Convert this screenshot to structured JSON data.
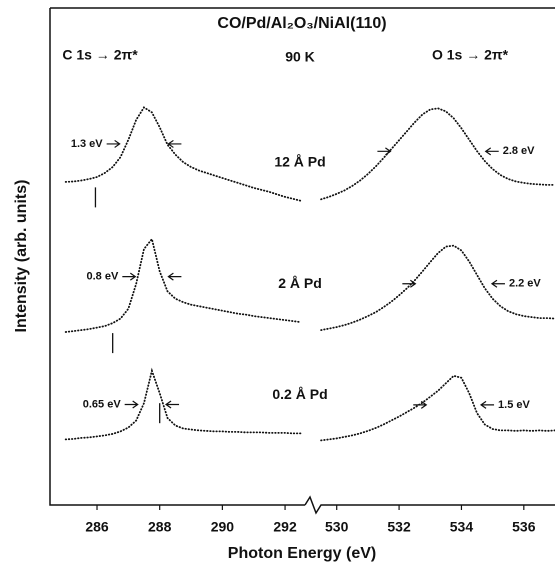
{
  "chart_data": {
    "type": "line",
    "title": "CO/Pd/Al₂O₃/NiAl(110)",
    "annotation": "90 K",
    "ylabel": "Intensity (arb. units)",
    "xlabel": "Photon Energy (eV)",
    "ylim": [
      0,
      100
    ],
    "labels": [
      "12 Å Pd",
      "2 Å Pd",
      "0.2 Å Pd"
    ],
    "panels": [
      {
        "heading": "C 1s → 2π*",
        "xlim": [
          284.5,
          292.7
        ],
        "xticks": [
          286,
          288,
          290,
          292
        ],
        "x": [
          285.0,
          285.25,
          285.5,
          285.75,
          286.0,
          286.25,
          286.5,
          286.75,
          287.0,
          287.25,
          287.5,
          287.75,
          288.0,
          288.25,
          288.5,
          288.75,
          289.0,
          289.25,
          289.5,
          289.75,
          290.0,
          290.25,
          290.5,
          290.75,
          291.0,
          291.25,
          291.5,
          291.75,
          292.0,
          292.25,
          292.5
        ],
        "series": [
          {
            "color": "#111111",
            "fwhm": 1.3,
            "fwhm_label": "1.3 eV",
            "marker": 285.95,
            "values": [
              65.0,
              65.1,
              65.3,
              65.6,
              66.0,
              66.8,
              68.0,
              70.0,
              73.5,
              77.5,
              80.0,
              79.0,
              76.0,
              72.5,
              70.5,
              69.0,
              68.0,
              67.3,
              66.8,
              66.3,
              65.8,
              65.3,
              64.8,
              64.3,
              63.8,
              63.4,
              63.0,
              62.5,
              62.0,
              61.6,
              61.2
            ]
          },
          {
            "color": "#111111",
            "fwhm": 0.8,
            "fwhm_label": "0.8 eV",
            "marker": 286.5,
            "values": [
              34.8,
              35.0,
              35.2,
              35.4,
              35.7,
              36.0,
              36.6,
              37.5,
              39.5,
              44.5,
              51.5,
              53.5,
              47.0,
              43.0,
              41.5,
              40.8,
              40.3,
              40.0,
              39.7,
              39.4,
              39.1,
              38.8,
              38.5,
              38.3,
              38.0,
              37.8,
              37.6,
              37.4,
              37.2,
              37.0,
              36.8
            ]
          },
          {
            "color": "#111111",
            "fwhm": 0.65,
            "fwhm_label": "0.65 eV",
            "marker": 288.0,
            "values": [
              13.2,
              13.3,
              13.5,
              13.6,
              13.8,
              14.0,
              14.3,
              14.8,
              15.6,
              17.0,
              20.5,
              27.0,
              22.5,
              17.5,
              16.0,
              15.4,
              15.2,
              15.0,
              14.9,
              14.8,
              14.8,
              14.7,
              14.7,
              14.6,
              14.6,
              14.6,
              14.5,
              14.5,
              14.5,
              14.4,
              14.4
            ]
          }
        ]
      },
      {
        "heading": "O 1s → 2π*",
        "xlim": [
          529.4,
          537.0
        ],
        "xticks": [
          530,
          532,
          534,
          536
        ],
        "x": [
          529.5,
          529.75,
          530.0,
          530.25,
          530.5,
          530.75,
          531.0,
          531.25,
          531.5,
          531.75,
          532.0,
          532.25,
          532.5,
          532.75,
          533.0,
          533.25,
          533.5,
          533.75,
          534.0,
          534.25,
          534.5,
          534.75,
          535.0,
          535.25,
          535.5,
          535.75,
          536.0,
          536.25,
          536.5,
          536.75,
          537.0
        ],
        "series": [
          {
            "color": "#111111",
            "fwhm": 2.8,
            "fwhm_label": "2.8 eV",
            "values": [
              61.5,
              62.0,
              62.6,
              63.3,
              64.2,
              65.3,
              66.6,
              68.1,
              69.8,
              71.6,
              73.4,
              75.2,
              77.0,
              78.6,
              79.6,
              79.8,
              79.2,
              77.8,
              75.8,
              73.5,
              71.2,
              69.2,
              67.6,
              66.4,
              65.6,
              65.1,
              64.8,
              64.6,
              64.5,
              64.4,
              64.4
            ]
          },
          {
            "color": "#111111",
            "fwhm": 2.2,
            "fwhm_label": "2.2 eV",
            "values": [
              35.2,
              35.5,
              35.8,
              36.2,
              36.7,
              37.3,
              38.0,
              38.8,
              39.8,
              40.9,
              42.2,
              43.6,
              45.2,
              47.0,
              48.9,
              50.7,
              52.0,
              52.2,
              51.2,
              49.0,
              46.3,
              43.6,
              41.5,
              40.0,
              39.0,
              38.4,
              38.0,
              37.8,
              37.6,
              37.6,
              37.5
            ]
          },
          {
            "color": "#111111",
            "fwhm": 1.5,
            "fwhm_label": "1.5 eV",
            "values": [
              13.0,
              13.2,
              13.4,
              13.7,
              14.0,
              14.4,
              14.9,
              15.5,
              16.2,
              17.0,
              17.8,
              18.7,
              19.6,
              20.6,
              21.8,
              23.0,
              24.5,
              26.0,
              25.6,
              22.5,
              18.5,
              16.2,
              15.3,
              15.0,
              15.0,
              14.9,
              15.0,
              14.9,
              15.0,
              14.9,
              15.0
            ]
          }
        ]
      }
    ]
  }
}
